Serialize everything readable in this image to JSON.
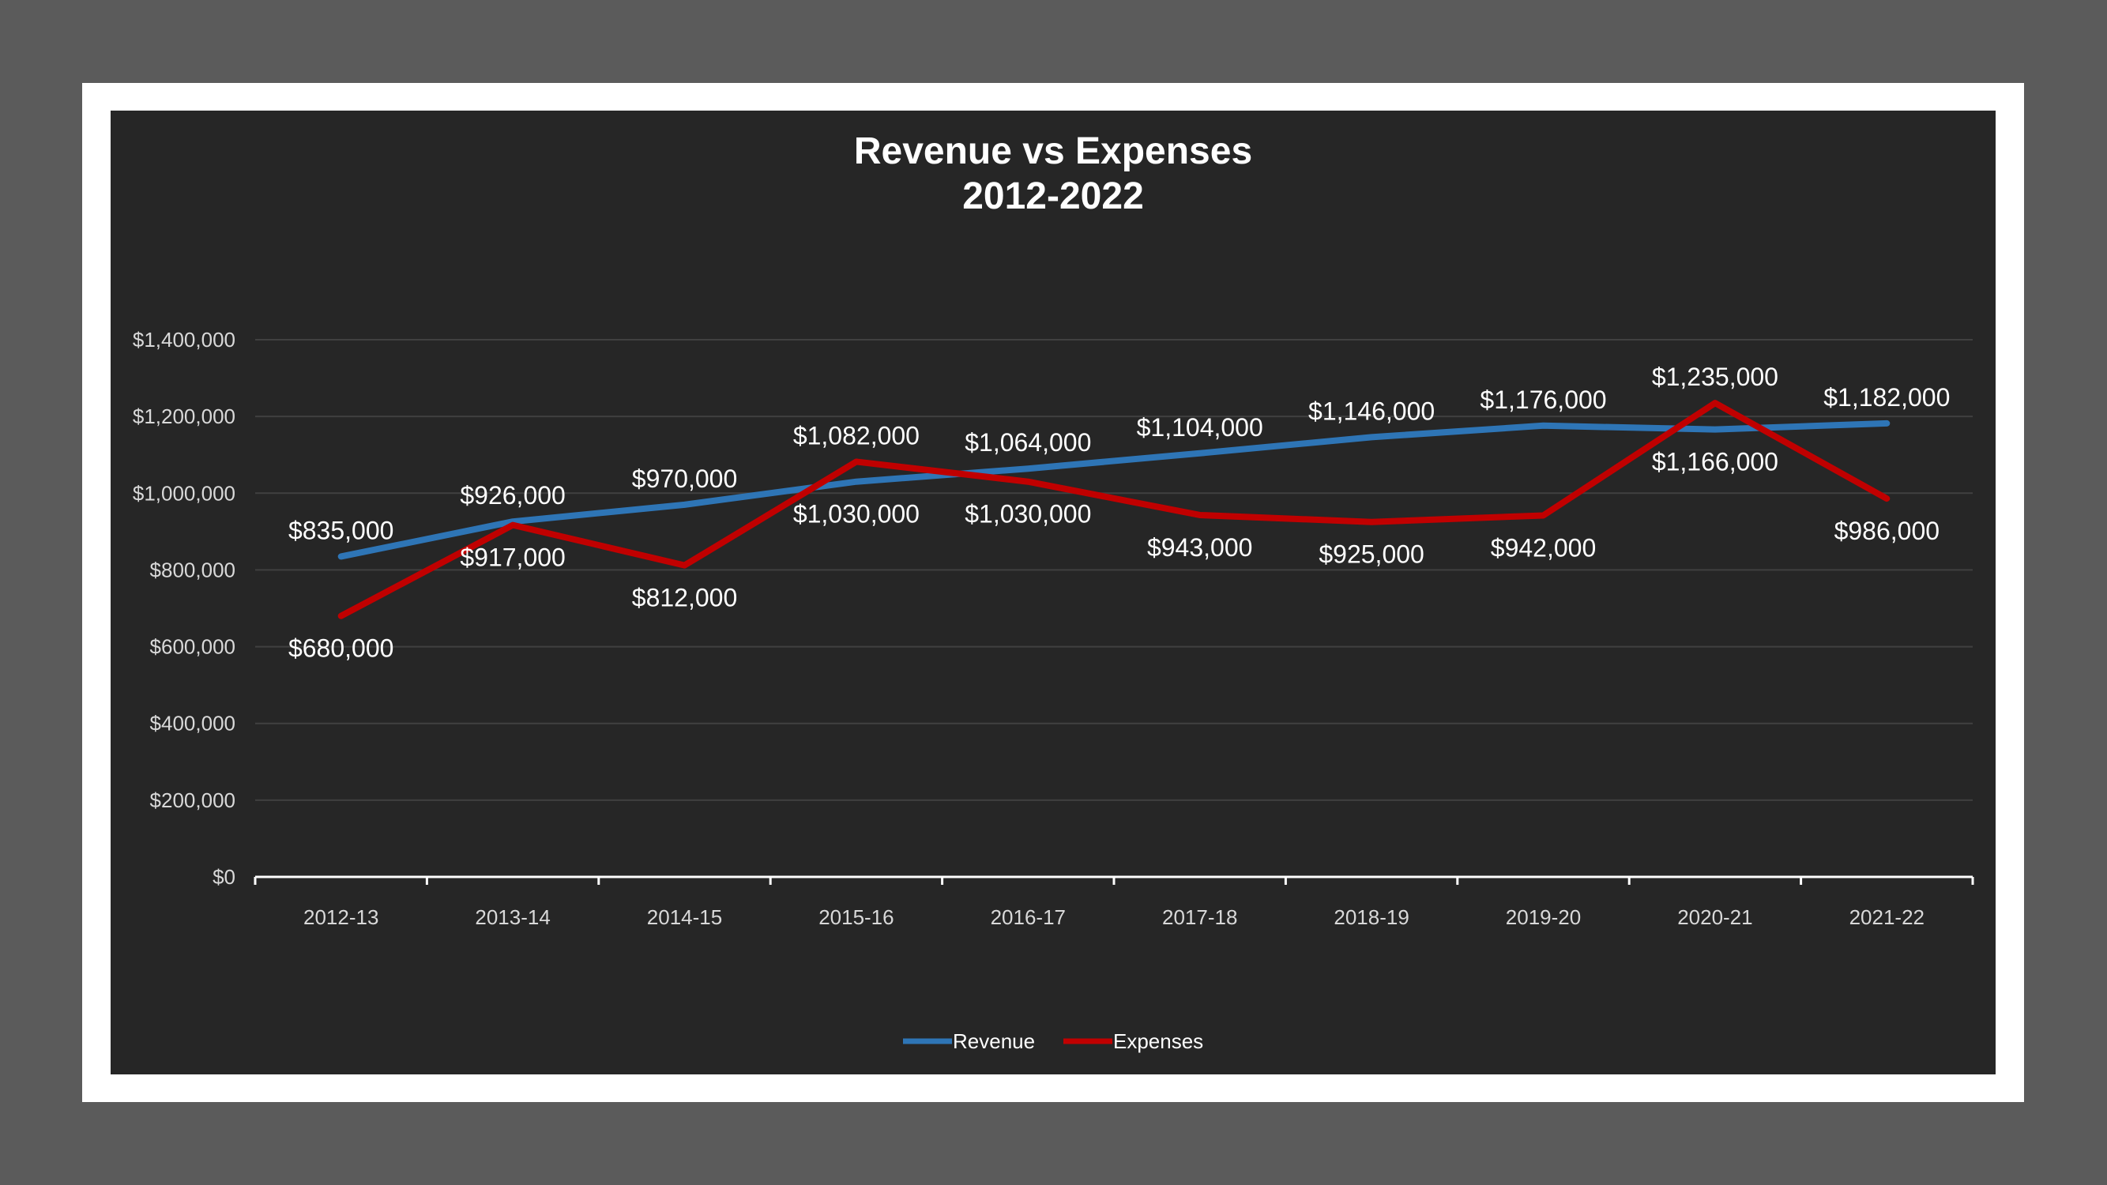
{
  "chart_data": {
    "type": "line",
    "title": [
      "Revenue vs Expenses",
      "2012-2022"
    ],
    "categories": [
      "2012-13",
      "2013-14",
      "2014-15",
      "2015-16",
      "2016-17",
      "2017-18",
      "2018-19",
      "2019-20",
      "2020-21",
      "2021-22"
    ],
    "series": [
      {
        "name": "Revenue",
        "color": "#2e75b6",
        "values": [
          835000,
          926000,
          970000,
          1030000,
          1064000,
          1104000,
          1146000,
          1176000,
          1166000,
          1182000
        ],
        "labels": [
          "$835,000",
          "$926,000",
          "$970,000",
          "$1,030,000",
          "$1,064,000",
          "$1,104,000",
          "$1,146,000",
          "$1,176,000",
          "$1,166,000",
          "$1,182,000"
        ]
      },
      {
        "name": "Expenses",
        "color": "#c00000",
        "values": [
          680000,
          917000,
          812000,
          1082000,
          1030000,
          943000,
          925000,
          942000,
          1235000,
          986000
        ],
        "labels": [
          "$680,000",
          "$917,000",
          "$812,000",
          "$1,082,000",
          "$1,030,000",
          "$943,000",
          "$925,000",
          "$942,000",
          "$1,235,000",
          "$986,000"
        ]
      }
    ],
    "yticks": [
      0,
      200000,
      400000,
      600000,
      800000,
      1000000,
      1200000,
      1400000
    ],
    "ytick_labels": [
      "$0",
      "$200,000",
      "$400,000",
      "$600,000",
      "$800,000",
      "$1,000,000",
      "$1,200,000",
      "$1,400,000"
    ],
    "ylim": [
      0,
      1400000
    ],
    "grid": true,
    "legend_position": "bottom"
  },
  "colors": {
    "background": "#5b5b5b",
    "frame": "#ffffff",
    "panel": "#262626",
    "gridline": "#404040",
    "text": "#ffffff"
  }
}
